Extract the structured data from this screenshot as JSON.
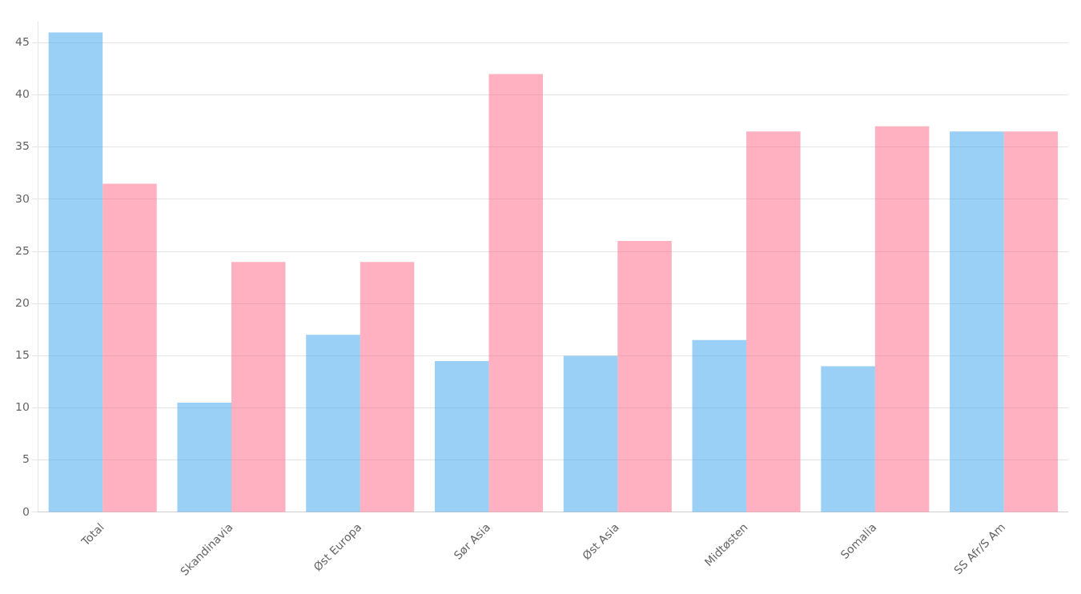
{
  "chart_data": {
    "type": "bar",
    "categories": [
      "Total",
      "Skandinavia",
      "Øst Europa",
      "Sør Asia",
      "Øst Asia",
      "Midtøsten",
      "Somalia",
      "SS Afr/S Am"
    ],
    "series": [
      {
        "values": [
          46.0,
          10.5,
          17.0,
          14.5,
          15.0,
          16.5,
          14.0,
          36.5
        ]
      },
      {
        "values": [
          31.5,
          24.0,
          24.0,
          42.0,
          26.0,
          36.5,
          37.0,
          36.5
        ]
      }
    ],
    "ylim": [
      0,
      47
    ],
    "yticks": [
      0,
      5,
      10,
      15,
      20,
      25,
      30,
      35,
      40,
      45
    ],
    "grid": true
  }
}
